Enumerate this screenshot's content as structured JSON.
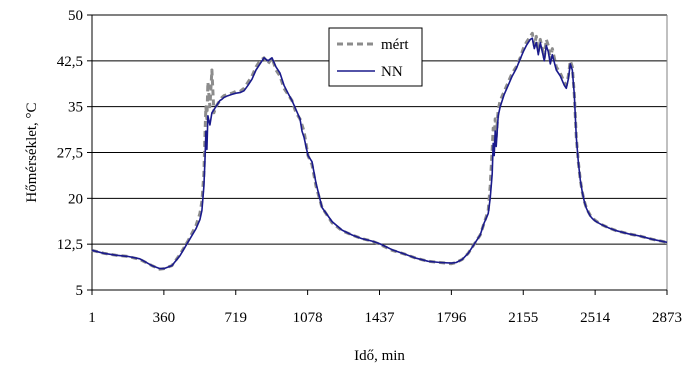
{
  "chart_data": {
    "type": "line",
    "title": "",
    "xlabel": "Idő, min",
    "ylabel": "Hőmérséklet, °C",
    "ylim": [
      5,
      50
    ],
    "xlim": [
      1,
      2873
    ],
    "yticks": [
      5,
      12.5,
      20,
      27.5,
      35,
      42.5,
      50
    ],
    "ytick_labels": [
      "5",
      "12,5",
      "20",
      "27,5",
      "35",
      "42,5",
      "50"
    ],
    "xticks": [
      1,
      360,
      719,
      1078,
      1437,
      1796,
      2155,
      2514,
      2873
    ],
    "xtick_labels": [
      "1",
      "360",
      "719",
      "1078",
      "1437",
      "1796",
      "2155",
      "2514",
      "2873"
    ],
    "grid": "horizontal",
    "legend_placement": "top-center",
    "series": [
      {
        "name": "mért",
        "style": "dashed",
        "color": "#8c8c8c",
        "x": [
          1,
          60,
          120,
          180,
          240,
          300,
          340,
          360,
          400,
          440,
          480,
          520,
          540,
          550,
          560,
          565,
          570,
          575,
          580,
          590,
          600,
          610,
          620,
          630,
          640,
          650,
          660,
          680,
          700,
          720,
          740,
          760,
          780,
          800,
          820,
          840,
          860,
          880,
          900,
          920,
          940,
          960,
          980,
          1000,
          1020,
          1040,
          1050,
          1060,
          1080,
          1100,
          1120,
          1150,
          1200,
          1250,
          1300,
          1350,
          1400,
          1437,
          1500,
          1560,
          1620,
          1680,
          1740,
          1796,
          1820,
          1850,
          1880,
          1910,
          1940,
          1960,
          1980,
          1990,
          2000,
          2005,
          2010,
          2015,
          2020,
          2030,
          2040,
          2060,
          2080,
          2100,
          2120,
          2140,
          2155,
          2170,
          2190,
          2200,
          2210,
          2220,
          2230,
          2240,
          2250,
          2260,
          2270,
          2280,
          2290,
          2300,
          2320,
          2340,
          2360,
          2370,
          2380,
          2390,
          2400,
          2410,
          2420,
          2430,
          2440,
          2450,
          2460,
          2470,
          2480,
          2490,
          2500,
          2514,
          2540,
          2580,
          2620,
          2680,
          2740,
          2800,
          2873
        ],
        "y": [
          11.5,
          11.0,
          10.7,
          10.5,
          10.0,
          9.0,
          8.4,
          8.5,
          9.0,
          10.8,
          13.0,
          15.5,
          17.5,
          19.5,
          24.0,
          30.0,
          35.0,
          33.0,
          39.0,
          35.0,
          41.0,
          34.0,
          35.0,
          35.5,
          36.0,
          36.5,
          36.8,
          37.0,
          37.2,
          37.5,
          37.5,
          38.0,
          39.0,
          40.0,
          41.5,
          42.5,
          43.0,
          42.0,
          43.0,
          41.0,
          40.0,
          38.0,
          37.0,
          36.0,
          34.0,
          33.0,
          32.0,
          31.0,
          27.0,
          25.5,
          22.0,
          18.5,
          16.0,
          14.7,
          14.0,
          13.4,
          13.0,
          12.5,
          11.5,
          10.9,
          10.2,
          9.7,
          9.5,
          9.3,
          9.5,
          10.0,
          11.0,
          12.5,
          14.0,
          16.0,
          18.0,
          22.0,
          28.0,
          31.5,
          29.0,
          33.0,
          30.0,
          34.5,
          36.0,
          37.5,
          39.0,
          40.5,
          41.5,
          43.0,
          44.5,
          45.5,
          46.5,
          47.0,
          45.0,
          46.5,
          44.0,
          46.0,
          44.5,
          43.0,
          46.0,
          45.0,
          42.5,
          44.5,
          41.5,
          40.5,
          39.0,
          38.5,
          40.0,
          42.5,
          41.5,
          37.0,
          30.0,
          26.0,
          23.0,
          21.0,
          19.5,
          18.5,
          17.8,
          17.2,
          16.8,
          16.4,
          15.8,
          15.2,
          14.7,
          14.2,
          13.8,
          13.3,
          12.8
        ]
      },
      {
        "name": "NN",
        "style": "solid",
        "color": "#1a1a8c",
        "x": [
          1,
          60,
          120,
          180,
          240,
          300,
          340,
          360,
          400,
          440,
          480,
          520,
          540,
          550,
          560,
          565,
          570,
          575,
          580,
          590,
          600,
          610,
          620,
          630,
          640,
          650,
          660,
          680,
          700,
          720,
          740,
          760,
          780,
          800,
          820,
          840,
          860,
          880,
          900,
          920,
          940,
          960,
          980,
          1000,
          1020,
          1040,
          1050,
          1060,
          1080,
          1100,
          1120,
          1150,
          1200,
          1250,
          1300,
          1350,
          1400,
          1437,
          1500,
          1560,
          1620,
          1680,
          1740,
          1796,
          1820,
          1850,
          1880,
          1910,
          1940,
          1960,
          1980,
          1990,
          2000,
          2005,
          2010,
          2015,
          2020,
          2030,
          2040,
          2060,
          2080,
          2100,
          2120,
          2140,
          2155,
          2170,
          2190,
          2200,
          2210,
          2220,
          2230,
          2240,
          2250,
          2260,
          2270,
          2280,
          2290,
          2300,
          2320,
          2340,
          2360,
          2370,
          2380,
          2390,
          2400,
          2410,
          2420,
          2430,
          2440,
          2450,
          2460,
          2470,
          2480,
          2490,
          2500,
          2514,
          2540,
          2580,
          2620,
          2680,
          2740,
          2800,
          2873
        ],
        "y": [
          11.5,
          11.0,
          10.7,
          10.5,
          10.1,
          9.0,
          8.5,
          8.5,
          9.0,
          10.6,
          12.8,
          15.0,
          16.5,
          18.0,
          22.0,
          26.0,
          31.0,
          28.0,
          33.5,
          32.0,
          34.0,
          34.5,
          35.0,
          35.5,
          36.0,
          36.2,
          36.5,
          36.8,
          37.0,
          37.2,
          37.3,
          37.6,
          38.5,
          39.5,
          41.0,
          42.0,
          43.0,
          42.5,
          43.0,
          41.5,
          40.5,
          38.5,
          37.2,
          36.0,
          34.5,
          33.0,
          31.0,
          30.0,
          27.0,
          26.0,
          22.5,
          18.5,
          16.2,
          14.8,
          14.0,
          13.4,
          13.0,
          12.6,
          11.6,
          10.9,
          10.2,
          9.7,
          9.5,
          9.4,
          9.5,
          10.0,
          11.0,
          12.5,
          14.0,
          16.0,
          17.5,
          20.0,
          24.0,
          29.0,
          27.0,
          31.0,
          28.5,
          33.5,
          35.0,
          37.0,
          38.5,
          40.0,
          41.2,
          42.8,
          44.0,
          45.0,
          46.0,
          46.2,
          44.5,
          45.5,
          43.5,
          45.5,
          44.0,
          42.5,
          45.0,
          44.0,
          42.0,
          43.5,
          41.0,
          40.0,
          38.5,
          38.0,
          39.5,
          42.0,
          41.0,
          37.0,
          30.0,
          26.0,
          23.0,
          21.0,
          19.5,
          18.4,
          17.7,
          17.1,
          16.7,
          16.3,
          15.8,
          15.2,
          14.7,
          14.2,
          13.8,
          13.3,
          12.8
        ]
      }
    ]
  }
}
